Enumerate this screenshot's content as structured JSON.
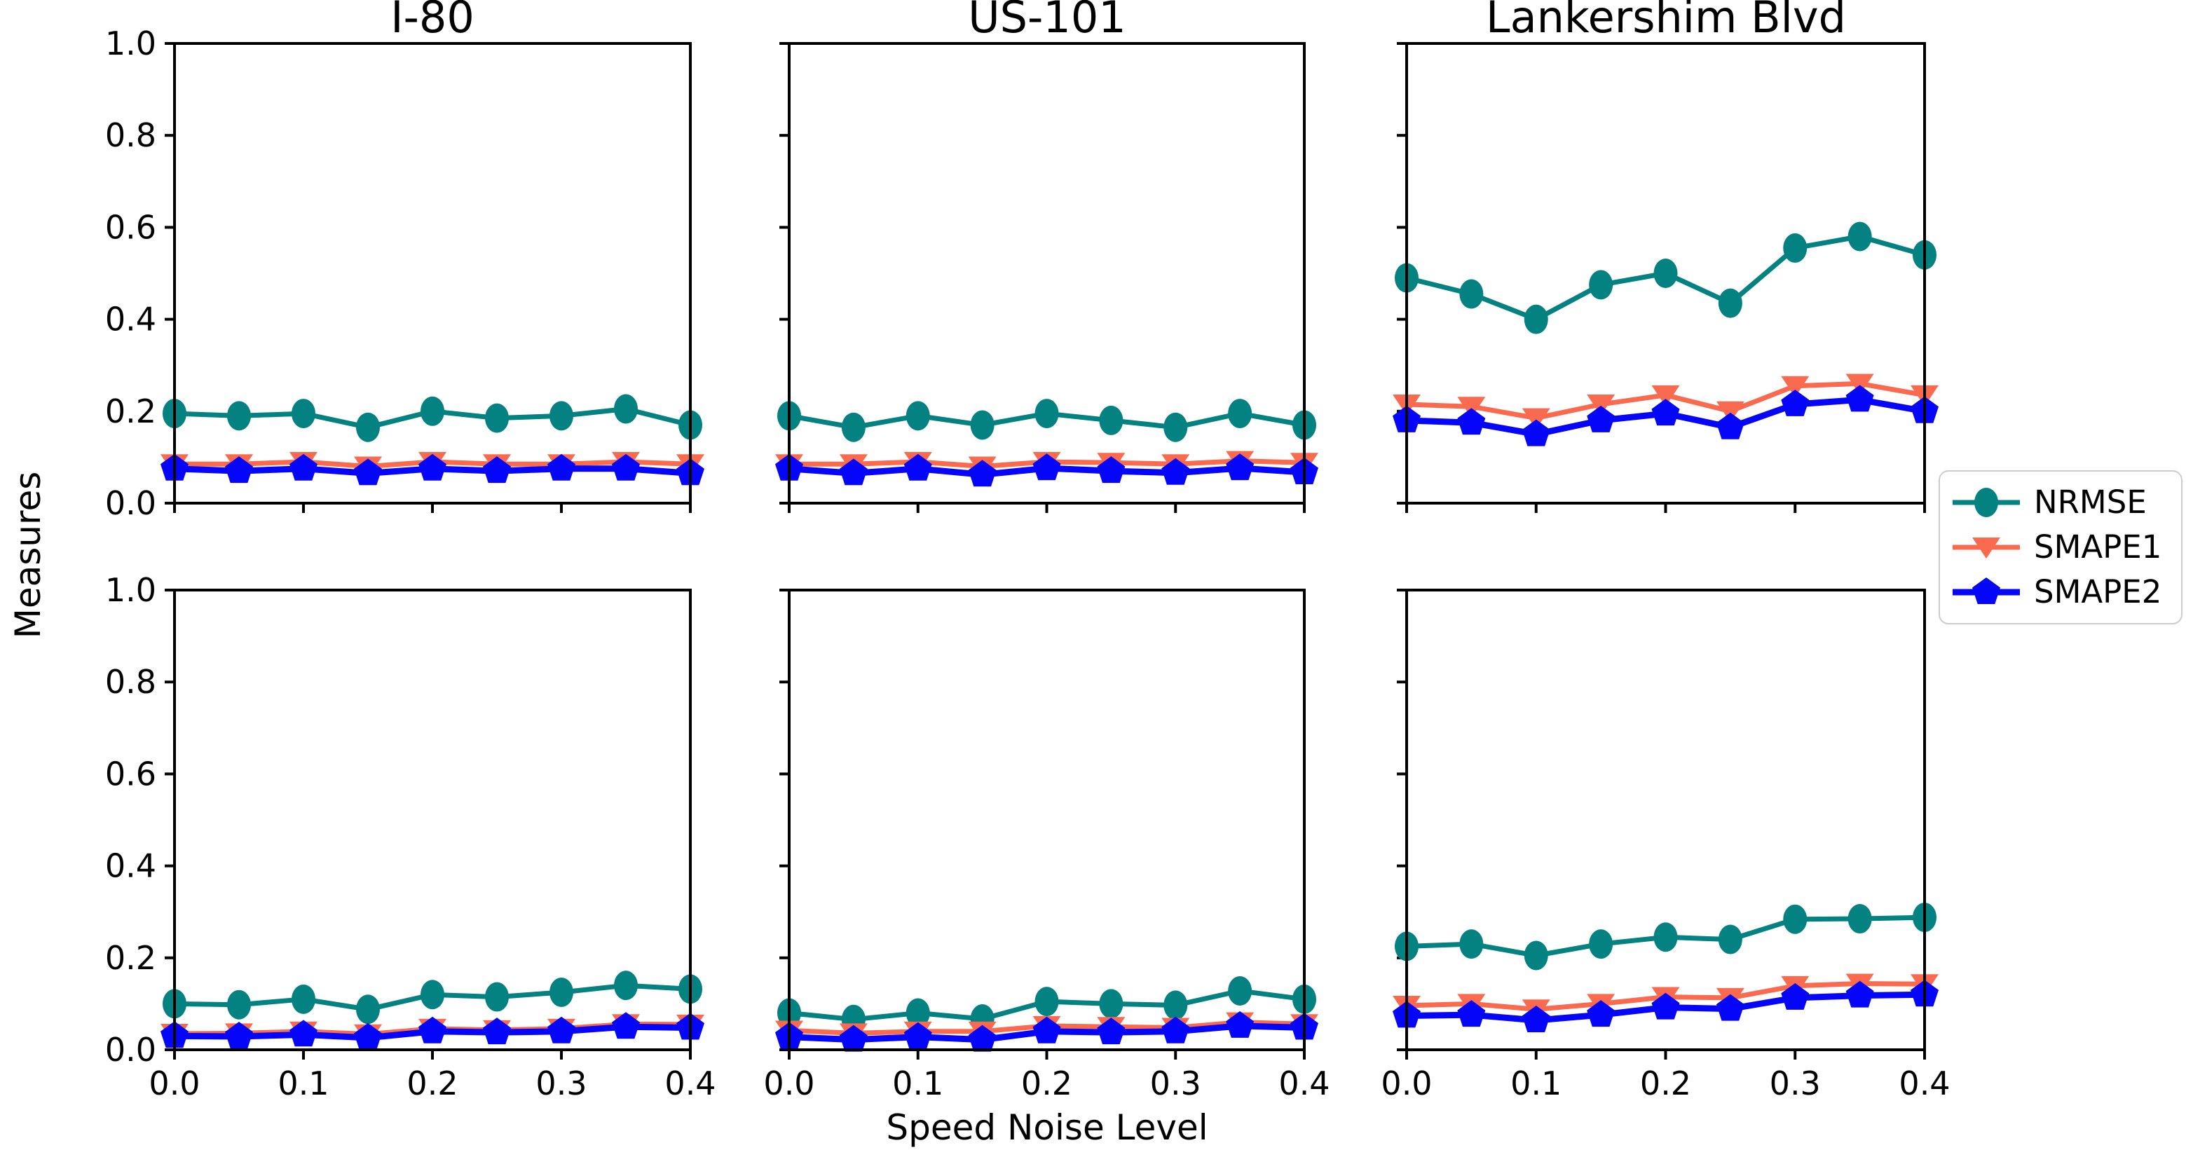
{
  "figure": {
    "ylabel": "Measures",
    "xlabel": "Speed Noise Level"
  },
  "colors": {
    "NRMSE": "#048181",
    "SMAPE1": "#FA6A4F",
    "SMAPE2": "#0505FA",
    "axis": "#000000"
  },
  "legend": {
    "position": "right-center",
    "items": [
      {
        "label": "NRMSE",
        "marker": "circle",
        "icon": "teal-circle-line-marker"
      },
      {
        "label": "SMAPE1",
        "marker": "triangle-down",
        "icon": "coral-triangle-line-marker"
      },
      {
        "label": "SMAPE2",
        "marker": "pentagon",
        "icon": "blue-pentagon-line-marker"
      }
    ]
  },
  "chart_data": {
    "type": "line",
    "grid": false,
    "x": [
      0.0,
      0.05,
      0.1,
      0.15,
      0.2,
      0.25,
      0.3,
      0.35,
      0.4
    ],
    "xlim": [
      0.0,
      0.4
    ],
    "ylim": [
      0.0,
      1.0
    ],
    "xticks": [
      0.0,
      0.1,
      0.2,
      0.3,
      0.4
    ],
    "yticks": [
      0.0,
      0.2,
      0.4,
      0.6,
      0.8,
      1.0
    ],
    "xlabel": "Speed Noise Level",
    "ylabel": "Measures",
    "legend_position": "center right, outside axes",
    "subplots": [
      {
        "row": 0,
        "col": 0,
        "title": "I-80",
        "series": [
          {
            "name": "NRMSE",
            "marker": "circle",
            "values": [
              0.195,
              0.19,
              0.195,
              0.165,
              0.2,
              0.185,
              0.19,
              0.205,
              0.17
            ]
          },
          {
            "name": "SMAPE1",
            "marker": "triangle-down",
            "values": [
              0.085,
              0.085,
              0.09,
              0.08,
              0.09,
              0.085,
              0.085,
              0.09,
              0.085
            ]
          },
          {
            "name": "SMAPE2",
            "marker": "pentagon",
            "values": [
              0.075,
              0.07,
              0.075,
              0.065,
              0.075,
              0.07,
              0.075,
              0.075,
              0.065
            ]
          }
        ]
      },
      {
        "row": 0,
        "col": 1,
        "title": "US-101",
        "series": [
          {
            "name": "NRMSE",
            "marker": "circle",
            "values": [
              0.19,
              0.165,
              0.19,
              0.17,
              0.195,
              0.18,
              0.165,
              0.195,
              0.17
            ]
          },
          {
            "name": "SMAPE1",
            "marker": "triangle-down",
            "values": [
              0.085,
              0.085,
              0.09,
              0.08,
              0.09,
              0.088,
              0.085,
              0.092,
              0.088
            ]
          },
          {
            "name": "SMAPE2",
            "marker": "pentagon",
            "values": [
              0.075,
              0.065,
              0.075,
              0.062,
              0.076,
              0.07,
              0.066,
              0.076,
              0.067
            ]
          }
        ]
      },
      {
        "row": 0,
        "col": 2,
        "title": "Lankershim Blvd",
        "series": [
          {
            "name": "NRMSE",
            "marker": "circle",
            "values": [
              0.49,
              0.455,
              0.4,
              0.475,
              0.5,
              0.435,
              0.555,
              0.58,
              0.54
            ]
          },
          {
            "name": "SMAPE1",
            "marker": "triangle-down",
            "values": [
              0.215,
              0.21,
              0.185,
              0.215,
              0.235,
              0.2,
              0.255,
              0.26,
              0.235
            ]
          },
          {
            "name": "SMAPE2",
            "marker": "pentagon",
            "values": [
              0.18,
              0.175,
              0.15,
              0.18,
              0.195,
              0.165,
              0.215,
              0.225,
              0.2
            ]
          }
        ]
      },
      {
        "row": 1,
        "col": 0,
        "title": "",
        "series": [
          {
            "name": "NRMSE",
            "marker": "circle",
            "values": [
              0.1,
              0.098,
              0.11,
              0.088,
              0.12,
              0.115,
              0.125,
              0.14,
              0.132
            ]
          },
          {
            "name": "SMAPE1",
            "marker": "triangle-down",
            "values": [
              0.035,
              0.036,
              0.04,
              0.034,
              0.046,
              0.043,
              0.046,
              0.056,
              0.055
            ]
          },
          {
            "name": "SMAPE2",
            "marker": "pentagon",
            "values": [
              0.03,
              0.029,
              0.033,
              0.026,
              0.04,
              0.038,
              0.04,
              0.05,
              0.048
            ]
          }
        ]
      },
      {
        "row": 1,
        "col": 1,
        "title": "",
        "series": [
          {
            "name": "NRMSE",
            "marker": "circle",
            "values": [
              0.08,
              0.066,
              0.08,
              0.067,
              0.105,
              0.1,
              0.097,
              0.128,
              0.11
            ]
          },
          {
            "name": "SMAPE1",
            "marker": "triangle-down",
            "values": [
              0.042,
              0.036,
              0.04,
              0.04,
              0.052,
              0.05,
              0.048,
              0.06,
              0.056
            ]
          },
          {
            "name": "SMAPE2",
            "marker": "pentagon",
            "values": [
              0.028,
              0.022,
              0.028,
              0.022,
              0.04,
              0.038,
              0.04,
              0.052,
              0.048
            ]
          }
        ]
      },
      {
        "row": 1,
        "col": 2,
        "title": "",
        "series": [
          {
            "name": "NRMSE",
            "marker": "circle",
            "values": [
              0.225,
              0.23,
              0.205,
              0.23,
              0.245,
              0.24,
              0.284,
              0.285,
              0.288
            ]
          },
          {
            "name": "SMAPE1",
            "marker": "triangle-down",
            "values": [
              0.096,
              0.1,
              0.088,
              0.1,
              0.115,
              0.113,
              0.139,
              0.144,
              0.143
            ]
          },
          {
            "name": "SMAPE2",
            "marker": "pentagon",
            "values": [
              0.074,
              0.076,
              0.064,
              0.076,
              0.092,
              0.089,
              0.113,
              0.118,
              0.12
            ]
          }
        ]
      }
    ]
  }
}
